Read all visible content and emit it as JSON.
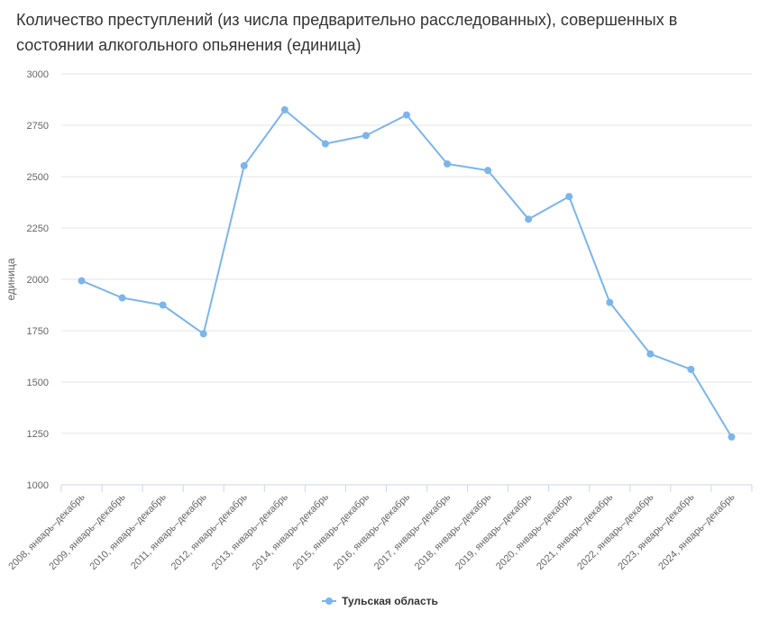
{
  "chart_data": {
    "type": "line",
    "title": "Количество преступлений (из числа предварительно расследованных), совершенных в состоянии алкогольного опьянения (единица)",
    "ylabel": "единица",
    "xlabel": "",
    "ylim": [
      1000,
      3000
    ],
    "yticks": [
      1000,
      1250,
      1500,
      1750,
      2000,
      2250,
      2500,
      2750,
      3000
    ],
    "grid": true,
    "legend_position": "bottom-center",
    "categories": [
      "2008, январь–декабрь",
      "2009, январь–декабрь",
      "2010, январь–декабрь",
      "2011, январь–декабрь",
      "2012, январь–декабрь",
      "2013, январь–декабрь",
      "2014, январь–декабрь",
      "2015, январь–декабрь",
      "2016, январь–декабрь",
      "2017, январь–декабрь",
      "2018, январь–декабрь",
      "2019, январь–декабрь",
      "2020, январь–декабрь",
      "2021, январь–декабрь",
      "2022, январь–декабрь",
      "2023, январь–декабрь",
      "2024, январь–декабрь"
    ],
    "series": [
      {
        "name": "Тульская область",
        "color": "#7cb5ec",
        "values": [
          1993,
          1910,
          1875,
          1735,
          2553,
          2825,
          2660,
          2700,
          2800,
          2562,
          2530,
          2293,
          2403,
          1888,
          1637,
          1562,
          1233
        ]
      }
    ]
  }
}
